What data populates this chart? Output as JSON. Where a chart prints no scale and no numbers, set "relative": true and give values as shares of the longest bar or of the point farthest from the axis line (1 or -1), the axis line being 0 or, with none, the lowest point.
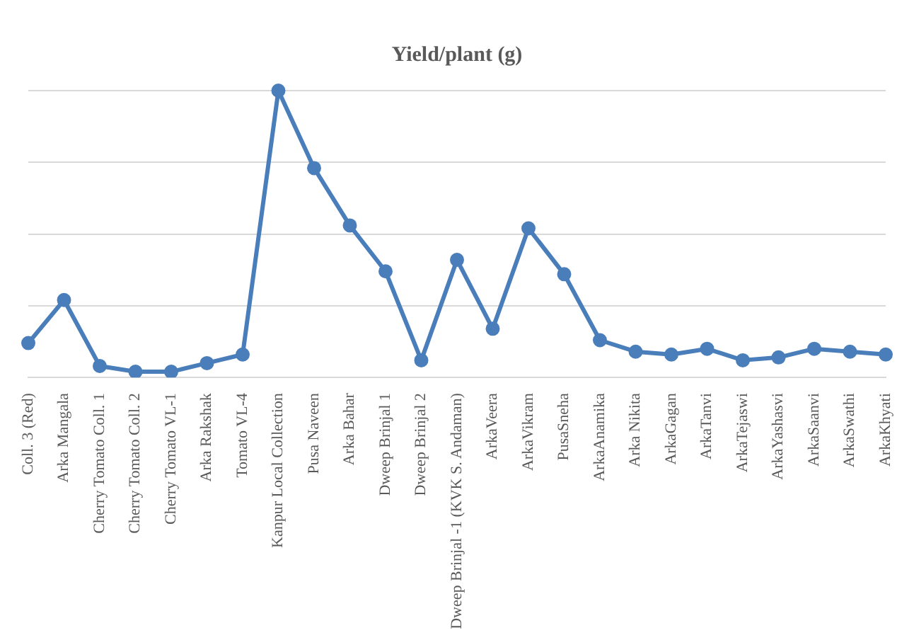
{
  "chart_data": {
    "type": "line",
    "title": "Yield/plant (g)",
    "relative": true,
    "grid": "y",
    "legend": false,
    "marker": "circle",
    "line_style": "solid",
    "categories": [
      "Coll. 3 (Red)",
      "Arka Mangala",
      "Cherry Tomato Coll. 1",
      "Cherry Tomato Coll. 2",
      "Cherry Tomato VL-1",
      "Arka Rakshak",
      "Tomato VL-4",
      "Kanpur Local Collection",
      "Pusa Naveen",
      "Arka Bahar",
      "Dweep Brinjal 1",
      "Dweep Brinjal 2",
      "Dweep Brinjal -1 (KVK S. Andaman)",
      "ArkaVeera",
      "ArkaVikram",
      "PusaSneha",
      "ArkaAnamika",
      "Arka Nikita",
      "ArkaGagan",
      "ArkaTanvi",
      "ArkaTejaswi",
      "ArkaYashasvi",
      "ArkaSaanvi",
      "ArkaSwathi",
      "ArkaKhyati"
    ],
    "series": [
      {
        "color": "#4a7ebb",
        "values": [
          0.12,
          0.27,
          0.04,
          0.02,
          0.02,
          0.05,
          0.08,
          1,
          0.73,
          0.53,
          0.37,
          0.06,
          0.41,
          0.17,
          0.52,
          0.36,
          0.13,
          0.09,
          0.08,
          0.1,
          0.06,
          0.07,
          0.1,
          0.09,
          0.08
        ]
      }
    ]
  }
}
